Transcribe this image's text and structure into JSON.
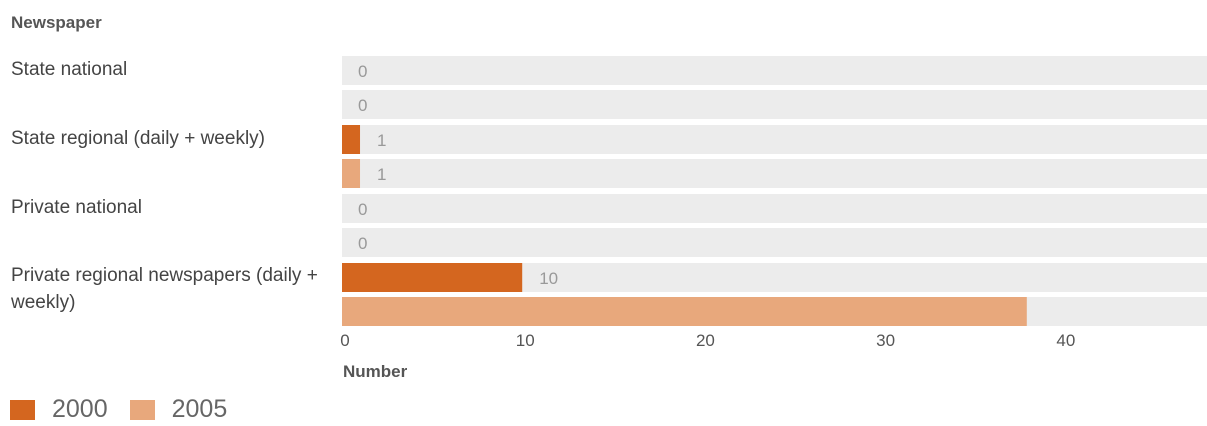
{
  "chart_data": {
    "type": "bar",
    "orientation": "horizontal",
    "category_axis_title": "Newspaper",
    "value_axis_title": "Number",
    "categories": [
      "State national",
      "State regional (daily + weekly)",
      "Private national",
      "Private regional newspapers (daily + weekly)"
    ],
    "series": [
      {
        "name": "2000",
        "color": "#d4661f",
        "values": [
          0,
          1,
          0,
          10
        ]
      },
      {
        "name": "2005",
        "color": "#e8a87c",
        "values": [
          0,
          1,
          0,
          38
        ]
      }
    ],
    "data_labels": [
      [
        "0",
        "0"
      ],
      [
        "1",
        "1"
      ],
      [
        "0",
        "0"
      ],
      [
        "10",
        ""
      ]
    ],
    "xlim": [
      0,
      48
    ],
    "xticks": [
      0,
      10,
      20,
      30,
      40
    ],
    "legend_position": "bottom-left",
    "track_color": "#ececec"
  }
}
